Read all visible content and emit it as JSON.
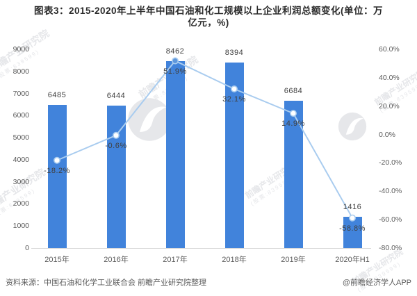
{
  "header": {
    "title_line1": "图表3：2015-2020年上半年中国石油和化工规模以上企业利润总额变化(单位：万",
    "title_line2": "亿元，%)"
  },
  "footer": {
    "source": "资料来源：中国石油和化学工业联合会 前瞻产业研究院整理",
    "credit": "@前瞻经济学人APP"
  },
  "watermark": {
    "text": "前瞻产业研究院",
    "stock": "(股票:839599)"
  },
  "colors": {
    "bar": "#4183db",
    "line": "#a9ccef",
    "marker_fill": "#ffffff",
    "marker_peak_fill": "#5e97dc",
    "data_label": "#404040",
    "axis_text": "#595959",
    "axis_line": "#d9d9d9",
    "watermark": "#e6e7ea"
  },
  "chart_data": {
    "type": "bar",
    "subtype": "bar+line combo, dual axis",
    "categories": [
      "2015年",
      "2016年",
      "2017年",
      "2018年",
      "2019年",
      "2020年H1"
    ],
    "series": [
      {
        "name": "bar-series",
        "type": "bar",
        "axis": "left",
        "values": [
          6485,
          6444,
          8462,
          8394,
          6684,
          1416
        ]
      },
      {
        "name": "line-series",
        "type": "line",
        "axis": "right",
        "values": [
          -18.2,
          -0.6,
          51.9,
          32.1,
          14.9,
          -58.8
        ]
      }
    ],
    "bar_labels": [
      "6485",
      "6444",
      "8462",
      "8394",
      "6684",
      "1416"
    ],
    "line_labels": [
      "-18.2%",
      "-0.6%",
      "51.9%",
      "32.1%",
      "14.9%",
      "-58.8%"
    ],
    "left_axis": {
      "min": 0,
      "max": 9000,
      "step": 1000,
      "ticks": [
        "0",
        "1000",
        "2000",
        "3000",
        "4000",
        "5000",
        "6000",
        "7000",
        "8000",
        "9000"
      ]
    },
    "right_axis": {
      "min": -80,
      "max": 60,
      "step": 20,
      "ticks": [
        "-80.0%",
        "-60.0%",
        "-40.0%",
        "-20.0%",
        "0.0%",
        "20.0%",
        "40.0%",
        "60.0%"
      ]
    },
    "grid": false,
    "legend": "none",
    "title": "图表3：2015-2020年上半年中国石油和化工规模以上企业利润总额变化(单位：万亿元，%)"
  }
}
